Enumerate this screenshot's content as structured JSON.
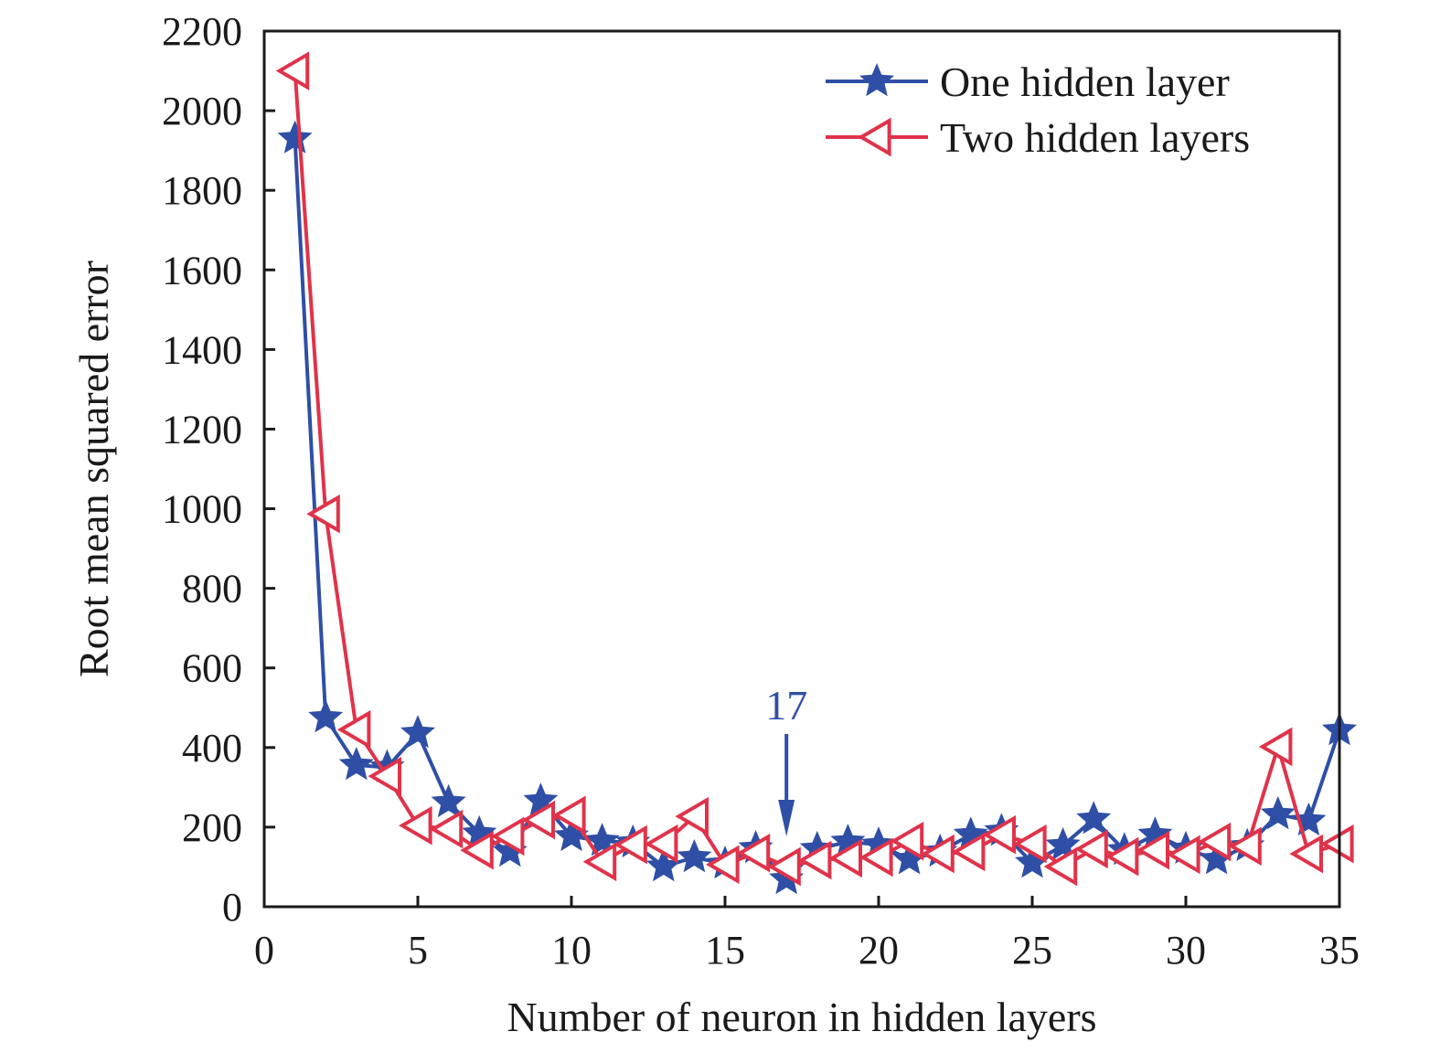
{
  "chart_data": {
    "type": "line",
    "title": "",
    "xlabel": "Number of neuron in hidden layers",
    "ylabel": "Root mean squared error",
    "xlim": [
      0,
      35
    ],
    "ylim": [
      0,
      2200
    ],
    "xticks": [
      "0",
      "5",
      "10",
      "15",
      "20",
      "25",
      "30",
      "35"
    ],
    "yticks": [
      "0",
      "200",
      "400",
      "600",
      "800",
      "1000",
      "1200",
      "1400",
      "1600",
      "1800",
      "2000",
      "2200"
    ],
    "grid": false,
    "legend_position": "top-right",
    "x": [
      1,
      2,
      3,
      4,
      5,
      6,
      7,
      8,
      9,
      10,
      11,
      12,
      13,
      14,
      15,
      16,
      17,
      18,
      19,
      20,
      21,
      22,
      23,
      24,
      25,
      26,
      27,
      28,
      29,
      30,
      31,
      32,
      33,
      34,
      35
    ],
    "series": [
      {
        "name": "One hidden layer",
        "color": "#2f4fa6",
        "marker": "star",
        "values": [
          1930,
          475,
          356,
          350,
          436,
          262,
          184,
          138,
          266,
          177,
          165,
          161,
          101,
          124,
          108,
          147,
          69,
          145,
          163,
          156,
          119,
          138,
          181,
          190,
          110,
          154,
          220,
          142,
          181,
          145,
          119,
          152,
          232,
          216,
          443
        ]
      },
      {
        "name": "Two hidden layers",
        "color": "#e0334a",
        "marker": "triangle-left",
        "values": [
          2100,
          987,
          445,
          328,
          204,
          195,
          142,
          177,
          218,
          230,
          113,
          156,
          158,
          227,
          106,
          135,
          101,
          117,
          122,
          124,
          165,
          133,
          138,
          181,
          158,
          101,
          145,
          126,
          142,
          131,
          163,
          152,
          402,
          133,
          158
        ]
      }
    ],
    "annotations": [
      {
        "text": "17",
        "x": 17,
        "color": "#2f4fa6",
        "arrow": "down"
      }
    ]
  }
}
